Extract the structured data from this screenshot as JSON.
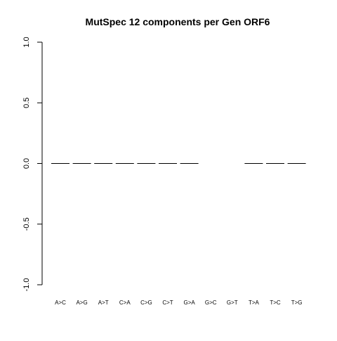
{
  "chart_data": {
    "type": "bar",
    "title": "MutSpec 12 components per Gen ORF6",
    "xlabel": "",
    "ylabel": "",
    "ylim": [
      -1.0,
      1.0
    ],
    "yticks": [
      1.0,
      0.5,
      0.0,
      -0.5,
      -1.0
    ],
    "ytick_labels": [
      "1.0",
      "0.5",
      "0.0",
      "-0.5",
      "-1.0"
    ],
    "categories": [
      "A>C",
      "A>G",
      "A>T",
      "C>A",
      "C>G",
      "C>T",
      "G>A",
      "G>C",
      "G>T",
      "T>A",
      "T>C",
      "T>G"
    ],
    "values": [
      0.0,
      0.0,
      0.0,
      0.0,
      0.0,
      0.0,
      0.0,
      null,
      null,
      0.0,
      0.0,
      0.0
    ],
    "grid": false,
    "legend": "none"
  }
}
